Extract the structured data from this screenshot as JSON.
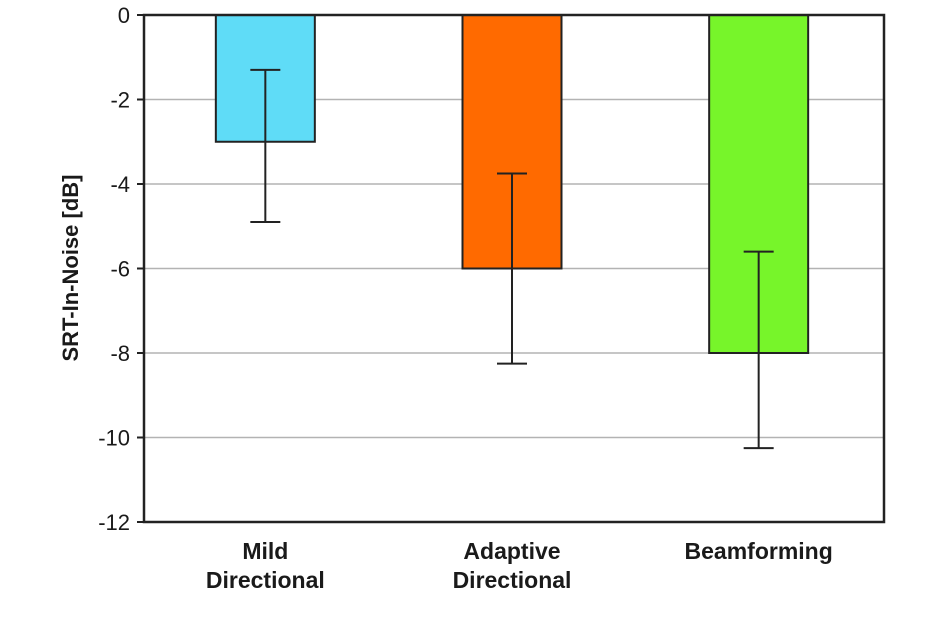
{
  "chart_data": {
    "type": "bar",
    "categories": [
      [
        "Mild",
        "Directional"
      ],
      [
        "Adaptive",
        "Directional"
      ],
      [
        "Beamforming"
      ]
    ],
    "values": [
      -3,
      -6,
      -8
    ],
    "error_bars": [
      {
        "low": -4.9,
        "high": -1.3
      },
      {
        "low": -8.25,
        "high": -3.75
      },
      {
        "low": -10.25,
        "high": -5.6
      }
    ],
    "colors": [
      "#5fdcf7",
      "#ff6a00",
      "#77f52a"
    ],
    "xlabel": "",
    "ylabel": "SRT-In-Noise [dB]",
    "ylim": [
      -12,
      0
    ],
    "yticks": [
      0,
      -2,
      -4,
      -6,
      -8,
      -10,
      -12
    ],
    "grid": true
  }
}
